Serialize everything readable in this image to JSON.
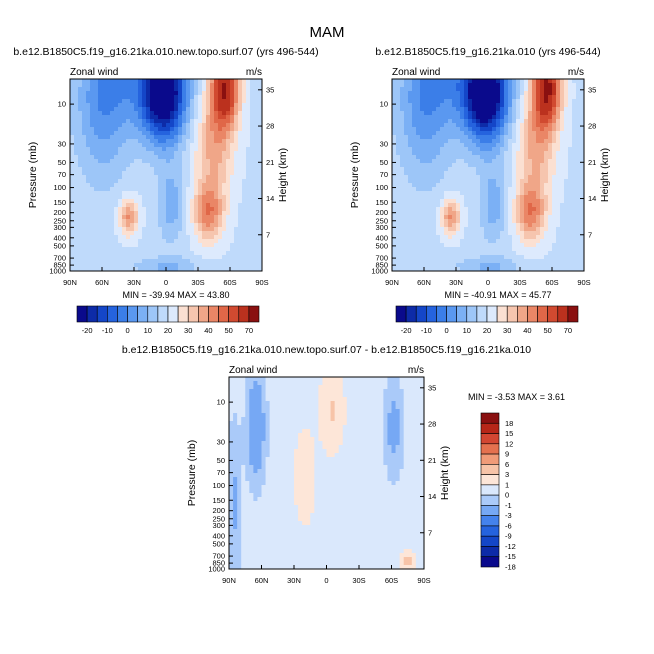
{
  "figure_title": "MAM",
  "chart_data": [
    {
      "type": "heatmap",
      "title": "b.e12.B1850C5.f19_g16.21ka.010.new.topo.surf.07 (yrs 496-544)",
      "left_label": "Zonal wind",
      "right_label": "m/s",
      "ylabel": "Pressure (mb)",
      "y2label": "Height (km)",
      "x_ticks": [
        "90N",
        "60N",
        "30N",
        "0",
        "30S",
        "60S",
        "90S"
      ],
      "y_ticks": [
        "10",
        "30",
        "50",
        "70",
        "100",
        "150",
        "200",
        "250",
        "300",
        "400",
        "500",
        "700",
        "850",
        "1000"
      ],
      "y2_ticks": [
        "35",
        "28",
        "21",
        "14",
        "7"
      ],
      "stats": "MIN = -39.94   MAX =  43.80",
      "colorbar_labels": [
        "-20",
        "-10",
        "0",
        "10",
        "20",
        "30",
        "40",
        "50",
        "70"
      ],
      "features": [
        {
          "lat": 0,
          "plev": 12,
          "value": -38
        },
        {
          "lat": -55,
          "plev": 10,
          "value": 40
        },
        {
          "lat": 35,
          "plev": 220,
          "value": 20
        },
        {
          "lat": -45,
          "plev": 220,
          "value": 25
        }
      ]
    },
    {
      "type": "heatmap",
      "title": "b.e12.B1850C5.f19_g16.21ka.010 (yrs 496-544)",
      "left_label": "Zonal wind",
      "right_label": "m/s",
      "ylabel": "Pressure (mb)",
      "y2label": "Height (km)",
      "x_ticks": [
        "90N",
        "60N",
        "30N",
        "0",
        "30S",
        "60S",
        "90S"
      ],
      "y_ticks": [
        "10",
        "30",
        "50",
        "70",
        "100",
        "150",
        "200",
        "250",
        "300",
        "400",
        "500",
        "700",
        "850",
        "1000"
      ],
      "y2_ticks": [
        "35",
        "28",
        "21",
        "14",
        "7"
      ],
      "stats": "MIN = -40.91   MAX =  45.77",
      "colorbar_labels": [
        "-20",
        "-10",
        "0",
        "10",
        "20",
        "30",
        "40",
        "50",
        "70"
      ],
      "features": [
        {
          "lat": 0,
          "plev": 12,
          "value": -40
        },
        {
          "lat": -55,
          "plev": 10,
          "value": 42
        },
        {
          "lat": 35,
          "plev": 220,
          "value": 20
        },
        {
          "lat": -45,
          "plev": 220,
          "value": 28
        }
      ]
    },
    {
      "type": "heatmap",
      "title": "b.e12.B1850C5.f19_g16.21ka.010.new.topo.surf.07 - b.e12.B1850C5.f19_g16.21ka.010",
      "left_label": "Zonal wind",
      "right_label": "m/s",
      "ylabel": "Pressure (mb)",
      "y2label": "Height (km)",
      "x_ticks": [
        "90N",
        "60N",
        "30N",
        "0",
        "30S",
        "60S",
        "90S"
      ],
      "y_ticks": [
        "10",
        "30",
        "50",
        "70",
        "100",
        "150",
        "200",
        "250",
        "300",
        "400",
        "500",
        "700",
        "850",
        "1000"
      ],
      "y2_ticks": [
        "35",
        "28",
        "21",
        "14",
        "7"
      ],
      "stats": "MIN =  -3.53   MAX =   3.61",
      "colorbar_labels": [
        "18",
        "15",
        "12",
        "9",
        "6",
        "3",
        "1",
        "0",
        "-1",
        "-3",
        "-6",
        "-9",
        "-12",
        "-15",
        "-18"
      ],
      "features": [
        {
          "lat": 65,
          "plev": 20,
          "value": -3.5
        },
        {
          "lat": -5,
          "plev": 15,
          "value": 3
        },
        {
          "lat": -75,
          "plev": 800,
          "value": 3.6
        }
      ]
    }
  ],
  "palettes": {
    "absolute": [
      "#0a0a8c",
      "#0d2ba8",
      "#1446c8",
      "#2563de",
      "#3b7ee8",
      "#5a98f0",
      "#7bb0f5",
      "#9dc6f8",
      "#bfdafb",
      "#ddeafd",
      "#fbe0d2",
      "#f6c5ae",
      "#f0a688",
      "#ea8666",
      "#e06748",
      "#d14a30",
      "#bb311e",
      "#8a1010"
    ],
    "difference": [
      "#0a0a8c",
      "#0d2ba8",
      "#1446c8",
      "#2563de",
      "#4482ec",
      "#76a8f4",
      "#aacaf9",
      "#dae8fc",
      "#fde6d8",
      "#f7c4a8",
      "#f09b78",
      "#e4714f",
      "#d24632",
      "#b62618",
      "#8a1010"
    ]
  }
}
